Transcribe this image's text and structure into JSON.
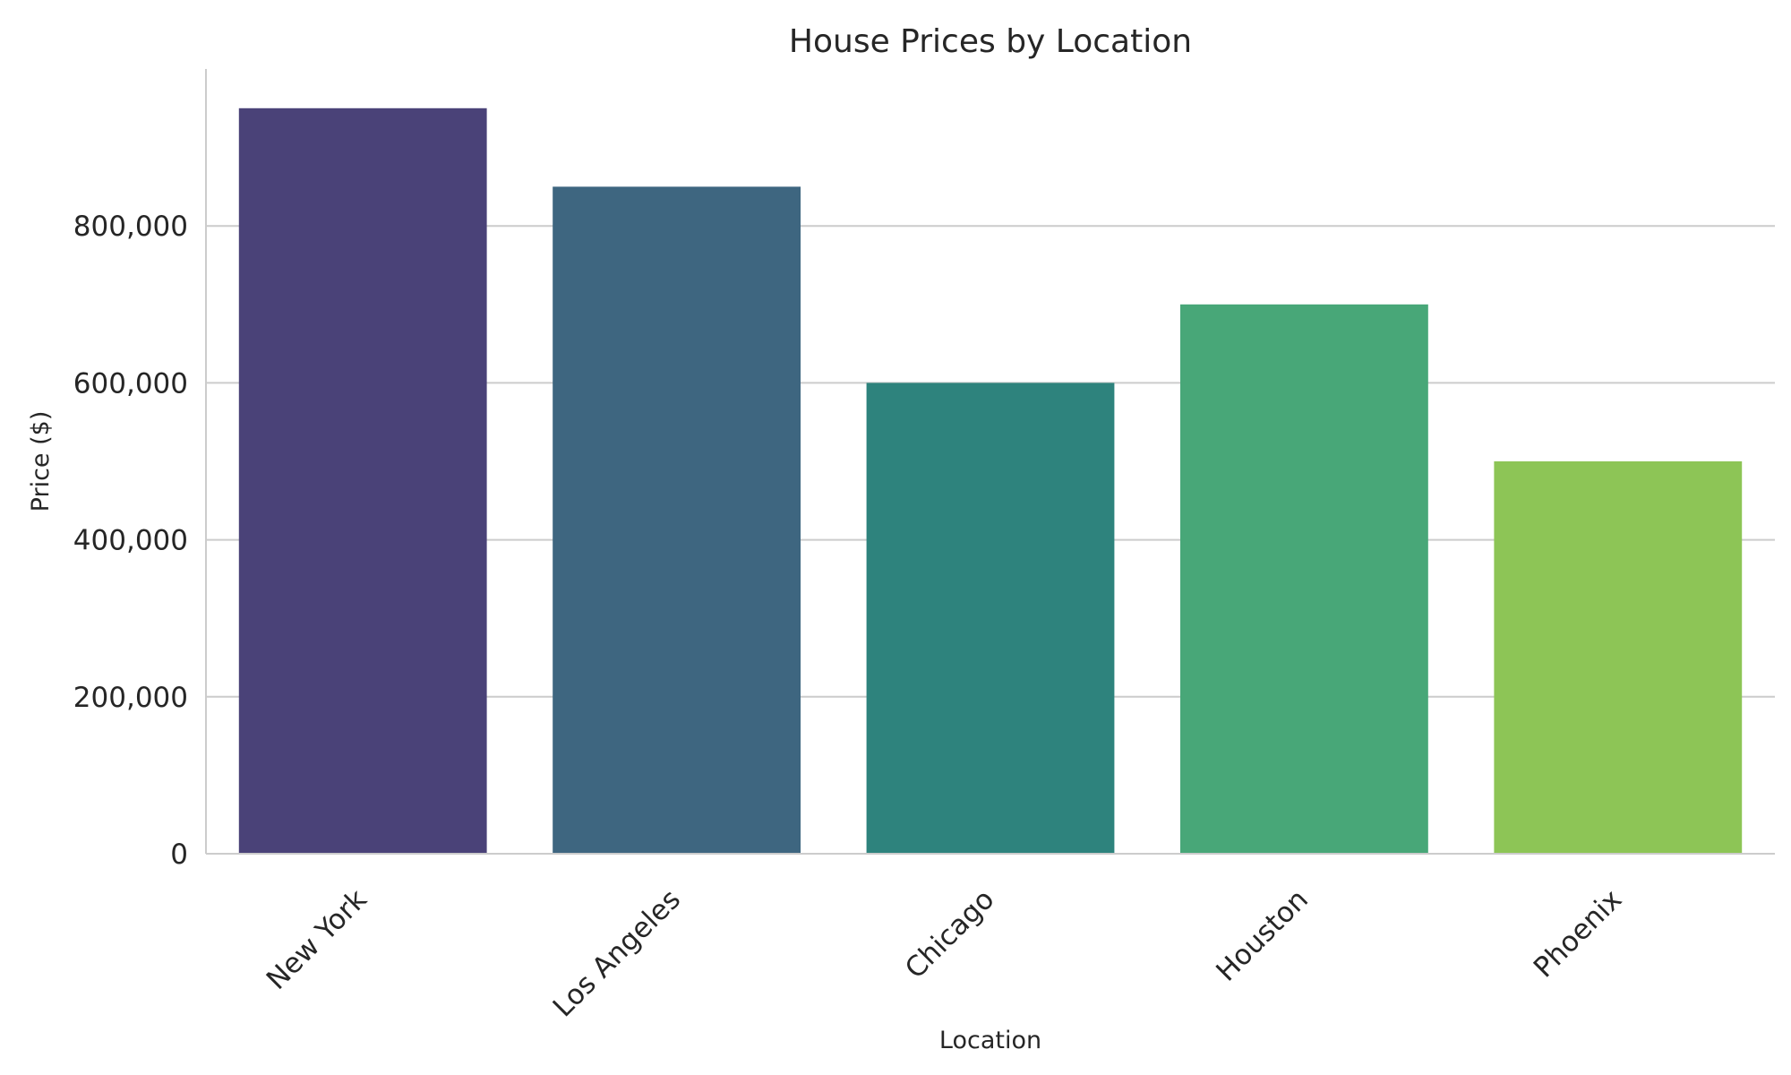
{
  "chart_data": {
    "type": "bar",
    "title": "House Prices by Location",
    "xlabel": "Location",
    "ylabel": "Price ($)",
    "categories": [
      "New York",
      "Los Angeles",
      "Chicago",
      "Houston",
      "Phoenix"
    ],
    "values": [
      950000,
      850000,
      600000,
      700000,
      500000
    ],
    "colors": [
      "#4a4278",
      "#3e6680",
      "#2e837d",
      "#48a778",
      "#8dc556"
    ],
    "ylim": [
      0,
      1000000
    ],
    "yticks": [
      0,
      200000,
      400000,
      600000,
      800000
    ],
    "ytick_labels": [
      "0",
      "200,000",
      "400,000",
      "600,000",
      "800,000"
    ],
    "grid": "horizontal",
    "x_tick_rotation": "45 degrees"
  }
}
